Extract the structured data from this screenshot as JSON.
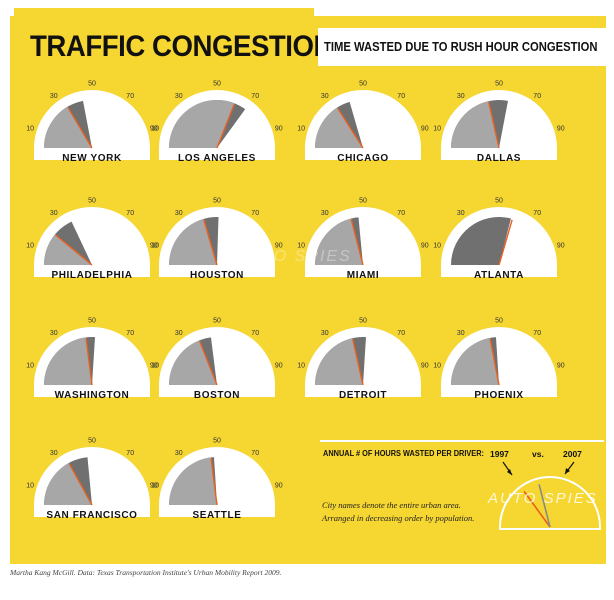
{
  "header": {
    "title": "TRAFFIC CONGESTION",
    "subtitle": "TIME WASTED DUE TO RUSH HOUR CONGESTION"
  },
  "legend": {
    "label": "ANNUAL # OF HOURS WASTED PER DRIVER:",
    "year_a": "1997",
    "vs": "vs.",
    "year_b": "2007"
  },
  "notes": {
    "line1": "City names denote the entire urban area.",
    "line2": "Arranged in decreasing order by population."
  },
  "credit": "Martha Kang McGill. Data: Texas Transportation Institute's Urban Mobility Report 2009.",
  "watermark": "AUTO SPIES",
  "colors": {
    "background": "#f6d631",
    "dial_face": "#ffffff",
    "fill_1997": "#a7a7a7",
    "fill_2007": "#707070",
    "needle": "#e8601f"
  },
  "chart_data": {
    "type": "gauge",
    "ticks": [
      10,
      30,
      50,
      70,
      90
    ],
    "scale": [
      0,
      100
    ],
    "series": [
      {
        "name": "1997",
        "values": [
          33,
          62,
          32,
          43,
          22,
          41,
          42,
          59,
          46,
          38,
          43,
          44,
          34,
          46
        ]
      },
      {
        "name": "2007",
        "values": [
          44,
          70,
          41,
          56,
          36,
          51,
          47,
          58,
          52,
          46,
          52,
          48,
          47,
          48
        ]
      }
    ],
    "categories": [
      "NEW YORK",
      "LOS ANGELES",
      "CHICAGO",
      "DALLAS",
      "PHILADELPHIA",
      "HOUSTON",
      "MIAMI",
      "ATLANTA",
      "WASHINGTON",
      "BOSTON",
      "DETROIT",
      "PHOENIX",
      "SAN FRANCISCO",
      "SEATTLE"
    ]
  },
  "legend_dial": {
    "value_1997": 30,
    "value_2007": 42
  }
}
